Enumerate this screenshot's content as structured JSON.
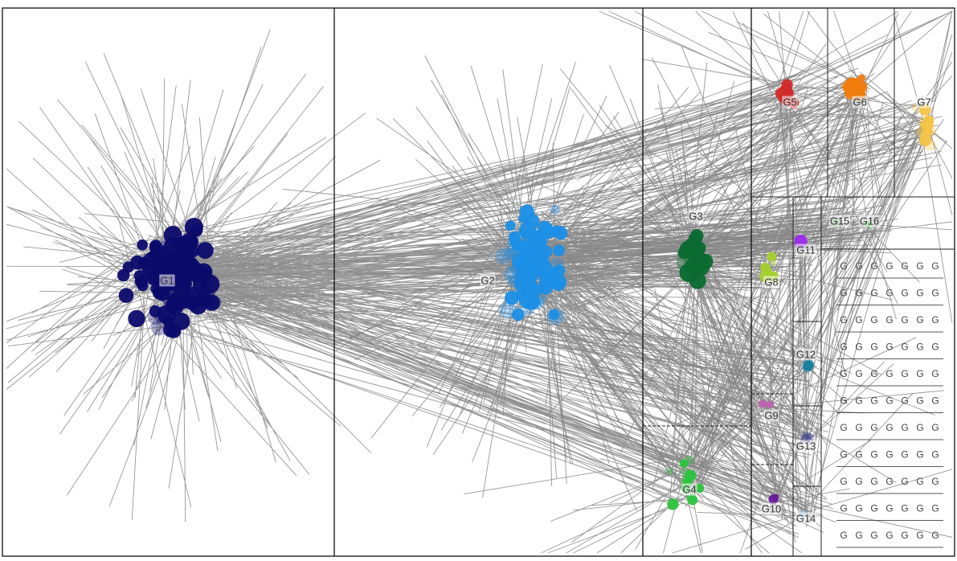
{
  "groups": [
    {
      "label": "G1",
      "color": "#0b0b6b"
    },
    {
      "label": "G2",
      "color": "#1c8fe6"
    },
    {
      "label": "G3",
      "color": "#0b6a30"
    },
    {
      "label": "G4",
      "color": "#2bc43c"
    },
    {
      "label": "G5",
      "color": "#d22b2b"
    },
    {
      "label": "G6",
      "color": "#ef7c0c"
    },
    {
      "label": "G7",
      "color": "#f4c444"
    },
    {
      "label": "G8",
      "color": "#a4d02c"
    },
    {
      "label": "G9",
      "color": "#c060b0"
    },
    {
      "label": "G10",
      "color": "#6a1b9a"
    },
    {
      "label": "G11",
      "color": "#9b30e8"
    },
    {
      "label": "G12",
      "color": "#1a7fa0"
    },
    {
      "label": "G13",
      "color": "#303a8c"
    },
    {
      "label": "G14",
      "color": "#a0c0e0"
    },
    {
      "label": "G15",
      "color": "#7aa87a"
    },
    {
      "label": "G16",
      "color": "#50c050"
    }
  ],
  "small_labels": [
    "G",
    "G",
    "G",
    "G",
    "G",
    "G",
    "G",
    "G",
    "G",
    "G",
    "G",
    "G",
    "G",
    "G",
    "G",
    "G",
    "G",
    "G",
    "G",
    "G",
    "G",
    "G",
    "G",
    "G",
    "G",
    "G",
    "G",
    "G",
    "G",
    "G",
    "G",
    "G",
    "G",
    "G",
    "G",
    "G",
    "G",
    "G",
    "G",
    "G",
    "G",
    "G",
    "G",
    "G",
    "G",
    "G",
    "G",
    "G",
    "G",
    "G",
    "G",
    "G",
    "G",
    "G",
    "G",
    "G",
    "G",
    "G",
    "G",
    "G",
    "G",
    "G",
    "G",
    "G",
    "G",
    "G",
    "G",
    "G",
    "G",
    "G",
    "G",
    "G",
    "G",
    "G",
    "G",
    "G",
    "G"
  ]
}
